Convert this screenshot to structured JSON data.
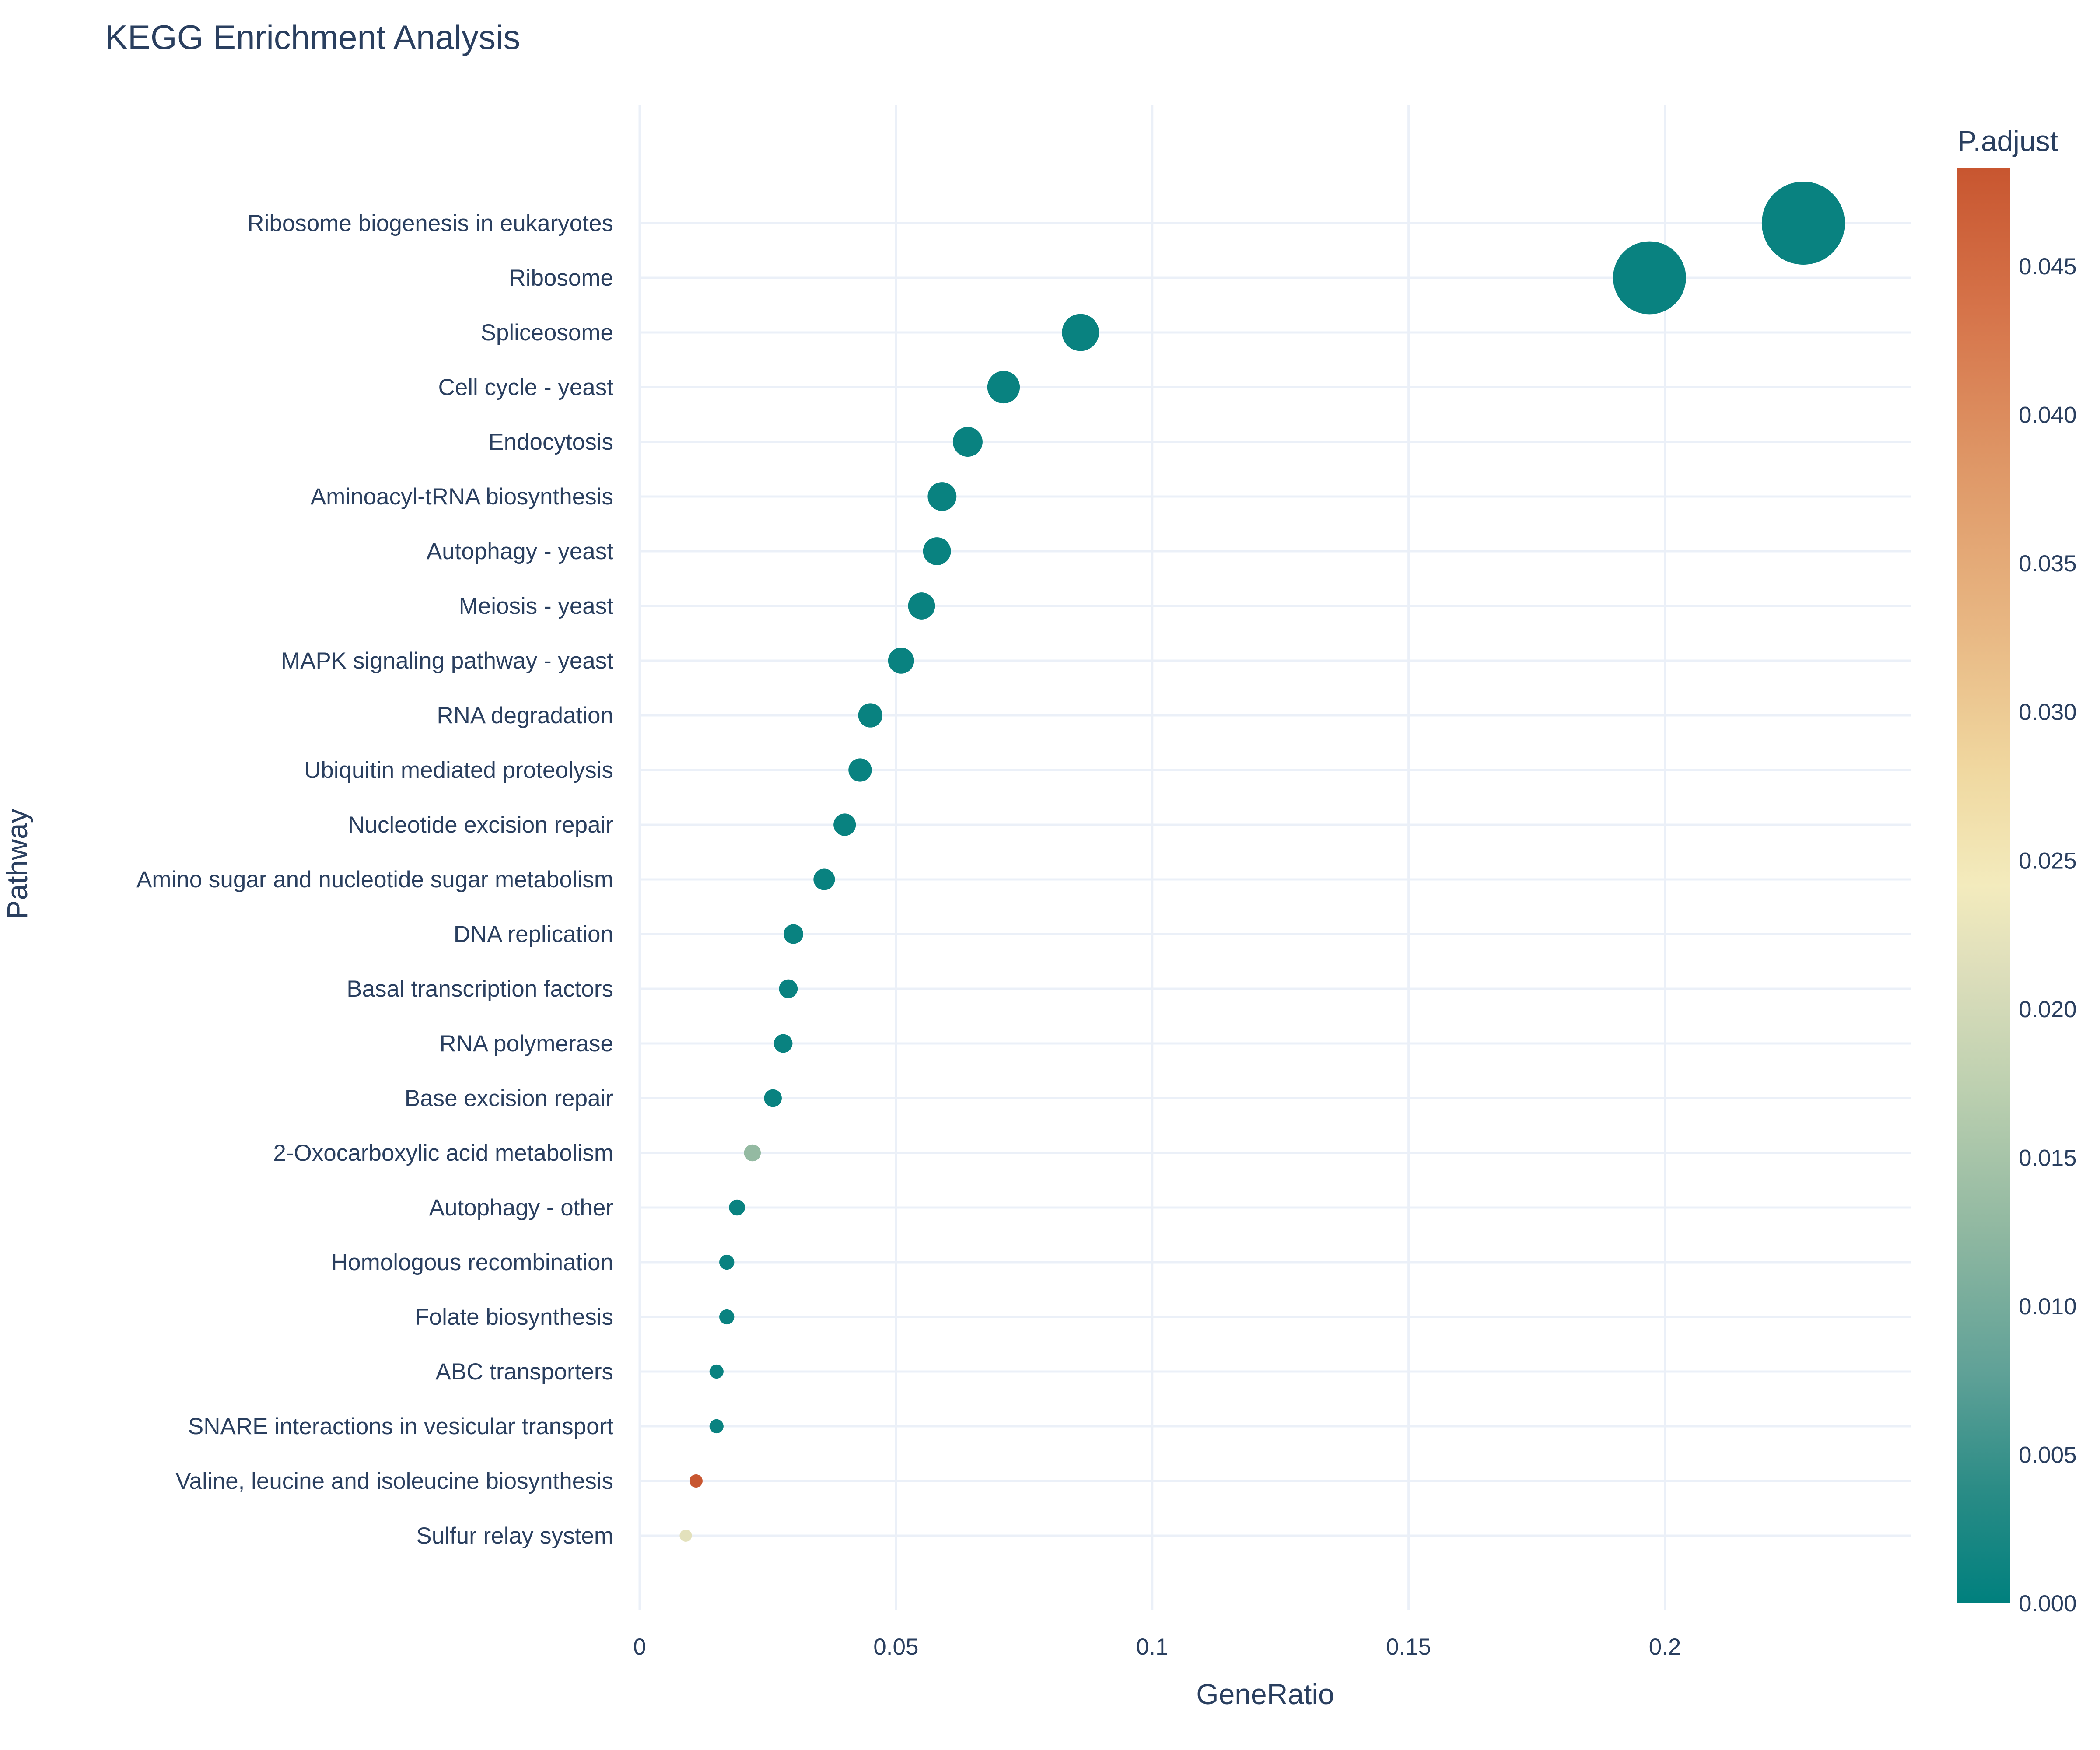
{
  "chart_data": {
    "type": "scatter",
    "title": "KEGG Enrichment Analysis",
    "xlabel": "GeneRatio",
    "ylabel": "Pathway",
    "xlim": [
      0,
      0.248
    ],
    "x_ticks": [
      {
        "value": 0,
        "label": "0"
      },
      {
        "value": 0.05,
        "label": "0.05"
      },
      {
        "value": 0.1,
        "label": "0.1"
      },
      {
        "value": 0.15,
        "label": "0.15"
      },
      {
        "value": 0.2,
        "label": "0.2"
      }
    ],
    "grid": true,
    "size_variable": "Count (marker size, unlabeled)",
    "color_variable": "P.adjust",
    "colorbar": {
      "title": "P.adjust",
      "range": [
        0,
        0.0483
      ],
      "ticks": [
        "0.000",
        "0.005",
        "0.010",
        "0.015",
        "0.020",
        "0.025",
        "0.030",
        "0.035",
        "0.040",
        "0.045"
      ],
      "tick_values": [
        0,
        0.005,
        0.01,
        0.015,
        0.02,
        0.025,
        0.03,
        0.035,
        0.04,
        0.045
      ],
      "colors": [
        [
          0.0,
          "#00807e"
        ],
        [
          0.08,
          "#2b8c86"
        ],
        [
          0.16,
          "#5fa197"
        ],
        [
          0.26,
          "#90b8a1"
        ],
        [
          0.36,
          "#bdd0b0"
        ],
        [
          0.44,
          "#dddebb"
        ],
        [
          0.5,
          "#f3ebbd"
        ],
        [
          0.58,
          "#f0d8a0"
        ],
        [
          0.68,
          "#e8b783"
        ],
        [
          0.8,
          "#de9565"
        ],
        [
          0.9,
          "#d6744a"
        ],
        [
          1.0,
          "#c85630"
        ]
      ]
    },
    "points": [
      {
        "pathway": "Ribosome biogenesis in eukaryotes",
        "gene_ratio": 0.227,
        "p_adjust": 0.0008,
        "count": 80
      },
      {
        "pathway": "Ribosome",
        "gene_ratio": 0.197,
        "p_adjust": 0.0008,
        "count": 69
      },
      {
        "pathway": "Spliceosome",
        "gene_ratio": 0.086,
        "p_adjust": 0.0008,
        "count": 30
      },
      {
        "pathway": "Cell cycle - yeast",
        "gene_ratio": 0.071,
        "p_adjust": 0.0008,
        "count": 25
      },
      {
        "pathway": "Endocytosis",
        "gene_ratio": 0.064,
        "p_adjust": 0.0008,
        "count": 22
      },
      {
        "pathway": "Aminoacyl-tRNA biosynthesis",
        "gene_ratio": 0.059,
        "p_adjust": 0.0008,
        "count": 21
      },
      {
        "pathway": "Autophagy - yeast",
        "gene_ratio": 0.058,
        "p_adjust": 0.0008,
        "count": 20
      },
      {
        "pathway": "Meiosis - yeast",
        "gene_ratio": 0.055,
        "p_adjust": 0.0008,
        "count": 19
      },
      {
        "pathway": "MAPK signaling pathway - yeast",
        "gene_ratio": 0.051,
        "p_adjust": 0.0008,
        "count": 18
      },
      {
        "pathway": "RNA degradation",
        "gene_ratio": 0.045,
        "p_adjust": 0.0008,
        "count": 16
      },
      {
        "pathway": "Ubiquitin mediated proteolysis",
        "gene_ratio": 0.043,
        "p_adjust": 0.0008,
        "count": 15
      },
      {
        "pathway": "Nucleotide excision repair",
        "gene_ratio": 0.04,
        "p_adjust": 0.0008,
        "count": 14
      },
      {
        "pathway": "Amino sugar and nucleotide sugar metabolism",
        "gene_ratio": 0.036,
        "p_adjust": 0.0008,
        "count": 13
      },
      {
        "pathway": "DNA replication",
        "gene_ratio": 0.03,
        "p_adjust": 0.0008,
        "count": 11
      },
      {
        "pathway": "Basal transcription factors",
        "gene_ratio": 0.029,
        "p_adjust": 0.0008,
        "count": 10
      },
      {
        "pathway": "RNA polymerase",
        "gene_ratio": 0.028,
        "p_adjust": 0.0008,
        "count": 10
      },
      {
        "pathway": "Base excision repair",
        "gene_ratio": 0.026,
        "p_adjust": 0.0008,
        "count": 9
      },
      {
        "pathway": "2-Oxocarboxylic acid metabolism",
        "gene_ratio": 0.022,
        "p_adjust": 0.013,
        "count": 8
      },
      {
        "pathway": "Autophagy - other",
        "gene_ratio": 0.019,
        "p_adjust": 0.0008,
        "count": 7
      },
      {
        "pathway": "Homologous recombination",
        "gene_ratio": 0.017,
        "p_adjust": 0.0008,
        "count": 6
      },
      {
        "pathway": "Folate biosynthesis",
        "gene_ratio": 0.017,
        "p_adjust": 0.0008,
        "count": 6
      },
      {
        "pathway": "ABC transporters",
        "gene_ratio": 0.015,
        "p_adjust": 0.0008,
        "count": 5
      },
      {
        "pathway": "SNARE interactions in vesicular transport",
        "gene_ratio": 0.015,
        "p_adjust": 0.0008,
        "count": 5
      },
      {
        "pathway": "Valine, leucine and isoleucine biosynthesis",
        "gene_ratio": 0.011,
        "p_adjust": 0.0483,
        "count": 4
      },
      {
        "pathway": "Sulfur relay system",
        "gene_ratio": 0.009,
        "p_adjust": 0.022,
        "count": 3
      }
    ]
  }
}
